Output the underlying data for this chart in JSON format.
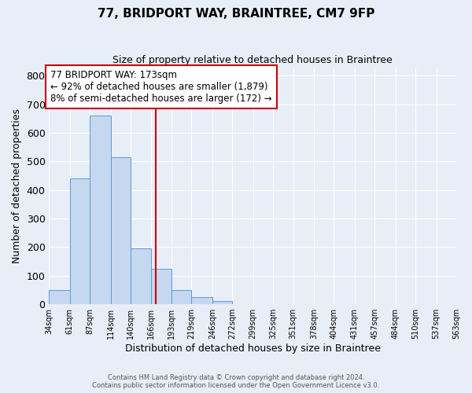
{
  "title": "77, BRIDPORT WAY, BRAINTREE, CM7 9FP",
  "subtitle": "Size of property relative to detached houses in Braintree",
  "xlabel": "Distribution of detached houses by size in Braintree",
  "ylabel": "Number of detached properties",
  "bin_edges": [
    34,
    61,
    87,
    114,
    140,
    166,
    193,
    219,
    246,
    272,
    299,
    325,
    351,
    378,
    404,
    431,
    457,
    484,
    510,
    537,
    563
  ],
  "bar_heights": [
    50,
    440,
    660,
    515,
    195,
    125,
    50,
    25,
    10,
    0,
    0,
    0,
    0,
    0,
    0,
    0,
    0,
    0,
    0,
    0
  ],
  "bar_color": "#c5d8ef",
  "bar_edge_color": "#5b9bd5",
  "property_value": 173,
  "vline_color": "#cc0000",
  "annotation_line1": "77 BRIDPORT WAY: 173sqm",
  "annotation_line2": "← 92% of detached houses are smaller (1,879)",
  "annotation_line3": "8% of semi-detached houses are larger (172) →",
  "annotation_box_color": "#ffffff",
  "annotation_box_edge": "#cc0000",
  "ylim": [
    0,
    830
  ],
  "yticks": [
    0,
    100,
    200,
    300,
    400,
    500,
    600,
    700,
    800
  ],
  "background_color": "#e8eef7",
  "grid_color": "#ffffff",
  "footer_line1": "Contains HM Land Registry data © Crown copyright and database right 2024.",
  "footer_line2": "Contains public sector information licensed under the Open Government Licence v3.0."
}
